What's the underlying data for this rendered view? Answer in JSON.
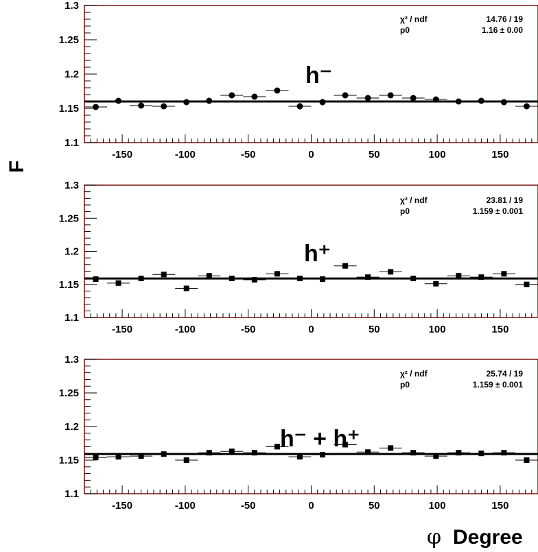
{
  "figure": {
    "ylabel": "F",
    "xlabel_symbol": "φ",
    "xlabel_text": "Degree"
  },
  "chart_data": [
    {
      "type": "scatter",
      "panel_label": "h⁻",
      "marker": "circle",
      "xlim": [
        -180,
        180
      ],
      "ylim": [
        1.1,
        1.3
      ],
      "xticks": [
        "-150",
        "-100",
        "-50",
        "0",
        "50",
        "100",
        "150"
      ],
      "yticks": [
        "1.1",
        "1.15",
        "1.2",
        "1.25",
        "1.3"
      ],
      "stats": [
        {
          "label": "χ² / ndf",
          "value": "14.76 / 19"
        },
        {
          "label": "p0",
          "value": "1.16 ± 0.00"
        }
      ],
      "fit_value": 1.16,
      "x": [
        -171,
        -153,
        -135,
        -117,
        -99,
        -81,
        -63,
        -45,
        -27,
        -9,
        9,
        27,
        45,
        63,
        81,
        99,
        117,
        135,
        153,
        171
      ],
      "y": [
        1.152,
        1.161,
        1.154,
        1.153,
        1.159,
        1.161,
        1.169,
        1.167,
        1.176,
        1.153,
        1.159,
        1.169,
        1.165,
        1.169,
        1.165,
        1.163,
        1.16,
        1.161,
        1.159,
        1.153
      ],
      "yerr": [
        0.004,
        0.004,
        0.004,
        0.004,
        0.004,
        0.004,
        0.004,
        0.004,
        0.004,
        0.005,
        0.005,
        0.004,
        0.004,
        0.004,
        0.004,
        0.004,
        0.004,
        0.004,
        0.004,
        0.004
      ]
    },
    {
      "type": "scatter",
      "panel_label": "h⁺",
      "marker": "square",
      "xlim": [
        -180,
        180
      ],
      "ylim": [
        1.1,
        1.3
      ],
      "xticks": [
        "-150",
        "-100",
        "-50",
        "0",
        "50",
        "100",
        "150"
      ],
      "yticks": [
        "1.1",
        "1.15",
        "1.2",
        "1.25",
        "1.3"
      ],
      "stats": [
        {
          "label": "χ² / ndf",
          "value": "23.81 / 19"
        },
        {
          "label": "p0",
          "value": "1.159 ± 0.001"
        }
      ],
      "fit_value": 1.159,
      "x": [
        -171,
        -153,
        -135,
        -117,
        -99,
        -81,
        -63,
        -45,
        -27,
        -9,
        9,
        27,
        45,
        63,
        81,
        99,
        117,
        135,
        153,
        171
      ],
      "y": [
        1.158,
        1.152,
        1.159,
        1.165,
        1.144,
        1.163,
        1.159,
        1.157,
        1.166,
        1.159,
        1.158,
        1.178,
        1.161,
        1.169,
        1.159,
        1.151,
        1.163,
        1.161,
        1.166,
        1.15
      ],
      "yerr": [
        0.004,
        0.004,
        0.003,
        0.003,
        0.003,
        0.003,
        0.003,
        0.003,
        0.004,
        0.004,
        0.004,
        0.004,
        0.003,
        0.003,
        0.003,
        0.003,
        0.003,
        0.003,
        0.004,
        0.004
      ]
    },
    {
      "type": "scatter",
      "panel_label": "h⁻ + h⁺",
      "marker": "square",
      "xlim": [
        -180,
        180
      ],
      "ylim": [
        1.1,
        1.3
      ],
      "xticks": [
        "-150",
        "-100",
        "-50",
        "0",
        "50",
        "100",
        "150"
      ],
      "yticks": [
        "1.1",
        "1.15",
        "1.2",
        "1.25",
        "1.3"
      ],
      "stats": [
        {
          "label": "χ² / ndf",
          "value": "25.74 / 19"
        },
        {
          "label": "p0",
          "value": "1.159 ± 0.001"
        }
      ],
      "fit_value": 1.159,
      "x": [
        -171,
        -153,
        -135,
        -117,
        -99,
        -81,
        -63,
        -45,
        -27,
        -9,
        9,
        27,
        45,
        63,
        81,
        99,
        117,
        135,
        153,
        171
      ],
      "y": [
        1.154,
        1.155,
        1.156,
        1.159,
        1.15,
        1.161,
        1.163,
        1.161,
        1.17,
        1.155,
        1.158,
        1.173,
        1.162,
        1.168,
        1.161,
        1.156,
        1.161,
        1.16,
        1.161,
        1.15
      ],
      "yerr": [
        0.003,
        0.003,
        0.003,
        0.002,
        0.002,
        0.002,
        0.002,
        0.002,
        0.003,
        0.003,
        0.003,
        0.003,
        0.002,
        0.002,
        0.002,
        0.002,
        0.002,
        0.002,
        0.003,
        0.003
      ]
    }
  ]
}
